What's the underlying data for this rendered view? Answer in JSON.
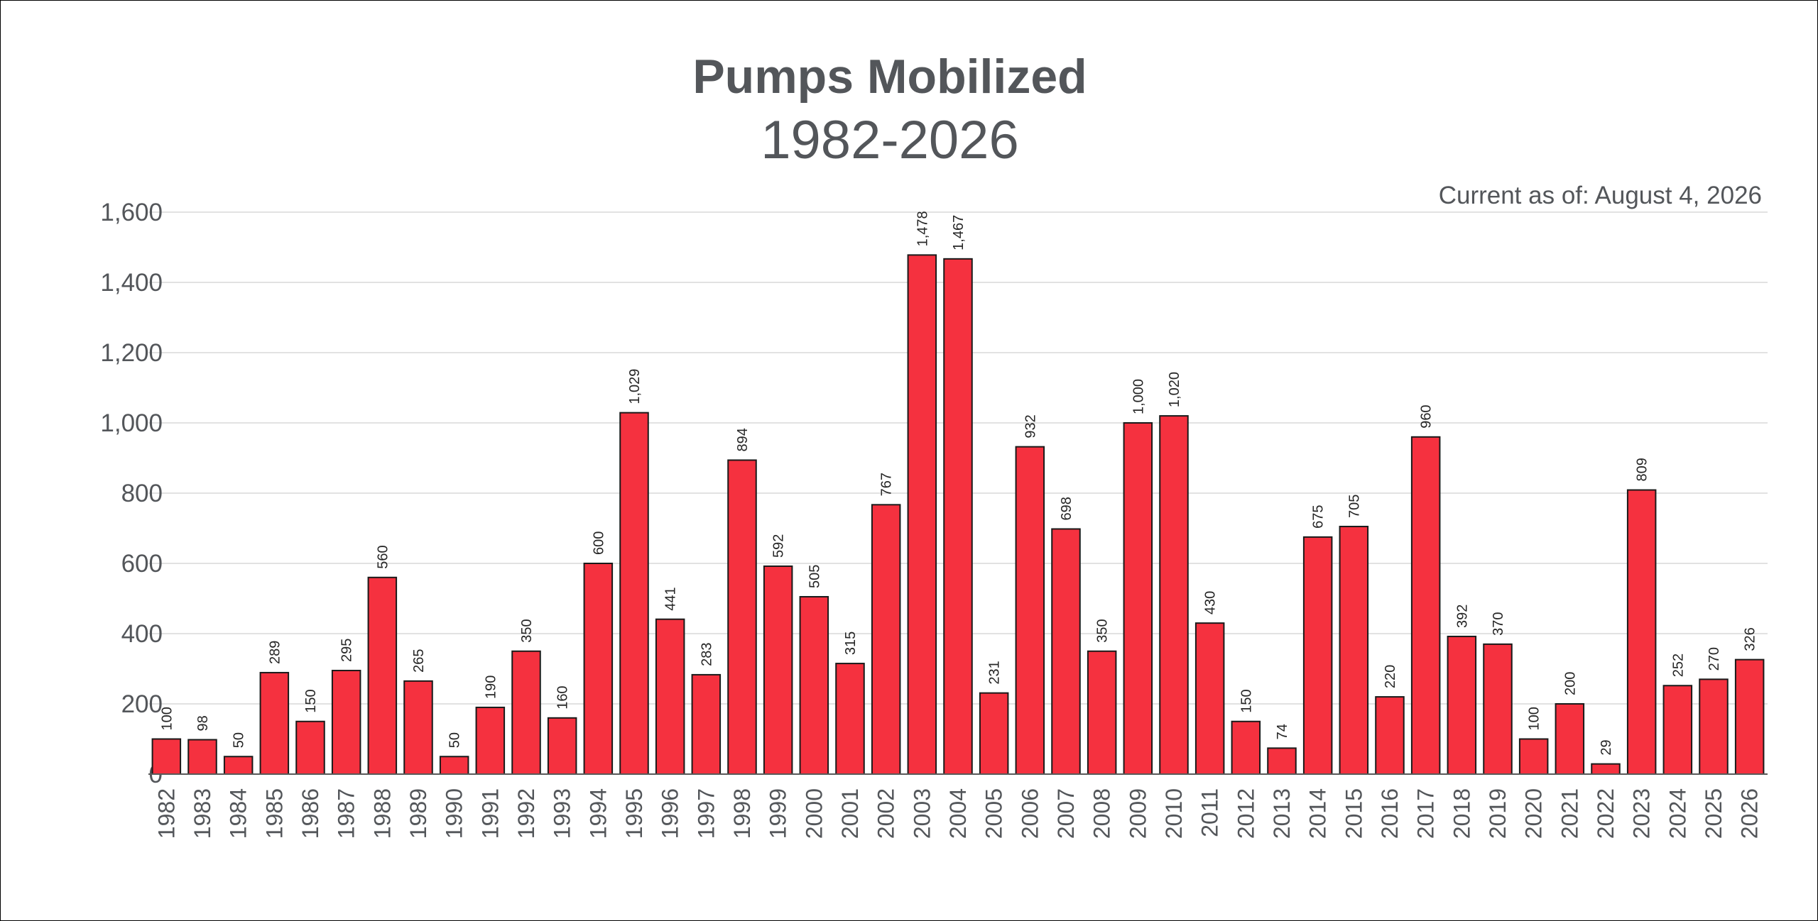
{
  "chart_data": {
    "type": "bar",
    "title": "Pumps Mobilized",
    "subtitle": "1982-2026",
    "annotation": "Current as of: August 4, 2026",
    "xlabel": "",
    "ylabel": "",
    "ylim": [
      0,
      1600
    ],
    "yticks": [
      0,
      200,
      400,
      600,
      800,
      1000,
      1200,
      1400,
      1600
    ],
    "ytick_labels": [
      "0",
      "200",
      "400",
      "600",
      "800",
      "1,000",
      "1,200",
      "1,400",
      "1,600"
    ],
    "grid": true,
    "legend": "none",
    "categories": [
      "1982",
      "1983",
      "1984",
      "1985",
      "1986",
      "1987",
      "1988",
      "1989",
      "1990",
      "1991",
      "1992",
      "1993",
      "1994",
      "1995",
      "1996",
      "1997",
      "1998",
      "1999",
      "2000",
      "2001",
      "2002",
      "2003",
      "2004",
      "2005",
      "2006",
      "2007",
      "2008",
      "2009",
      "2010",
      "2011",
      "2012",
      "2013",
      "2014",
      "2015",
      "2016",
      "2017",
      "2018",
      "2019",
      "2020",
      "2021",
      "2022",
      "2023",
      "2024",
      "2025",
      "2026"
    ],
    "values": [
      100,
      98,
      50,
      289,
      150,
      295,
      560,
      265,
      50,
      190,
      350,
      160,
      600,
      1029,
      441,
      283,
      894,
      592,
      505,
      315,
      767,
      1478,
      1467,
      231,
      932,
      698,
      350,
      1000,
      1020,
      430,
      150,
      74,
      675,
      705,
      220,
      960,
      392,
      370,
      100,
      200,
      29,
      809,
      252,
      270,
      326
    ],
    "data_labels": [
      "100",
      "98",
      "50",
      "289",
      "150",
      "295",
      "560",
      "265",
      "50",
      "190",
      "350",
      "160",
      "600",
      "1,029",
      "441",
      "283",
      "894",
      "592",
      "505",
      "315",
      "767",
      "1,478",
      "1,467",
      "231",
      "932",
      "698",
      "350",
      "1,000",
      "1,020",
      "430",
      "150",
      "74",
      "675",
      "705",
      "220",
      "960",
      "392",
      "370",
      "100",
      "200",
      "29",
      "809",
      "252",
      "270",
      "326"
    ],
    "colors": {
      "bar_fill": "#f5313f",
      "bar_stroke": "#1a1a1a",
      "title": "#53565a",
      "text": "#53565a",
      "data_label": "#262626",
      "grid": "#d9d9d9",
      "axis": "#595959"
    }
  }
}
